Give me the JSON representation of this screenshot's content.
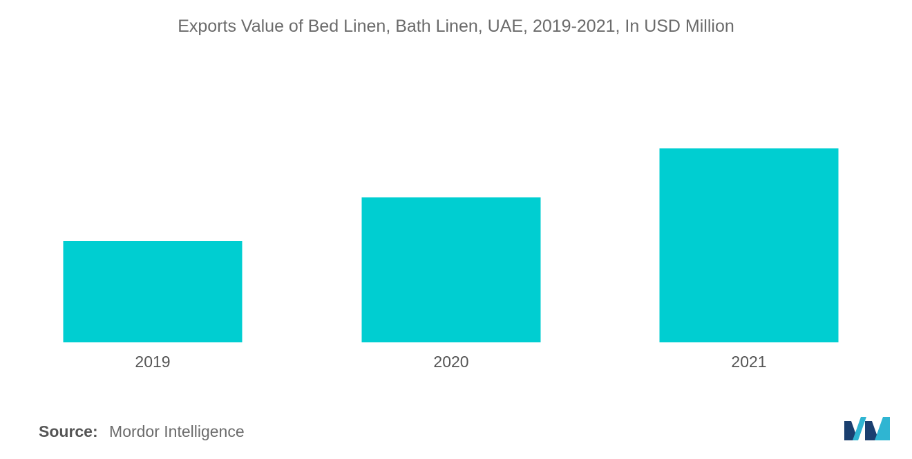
{
  "chart_data": {
    "type": "bar",
    "title": "Exports Value of Bed Linen, Bath Linen, UAE, 2019-2021, In USD Million",
    "categories": [
      "2019",
      "2020",
      "2021"
    ],
    "values": [
      147,
      210,
      281
    ],
    "ylim": [
      0,
      300
    ],
    "grid": false,
    "bar_color": "#00ced1"
  },
  "source": {
    "label": "Source:",
    "text": "Mordor Intelligence"
  },
  "logo": {
    "icon": "mordor-intelligence-logo-icon",
    "colors": [
      "#1a3f6f",
      "#2fb5d2"
    ]
  }
}
